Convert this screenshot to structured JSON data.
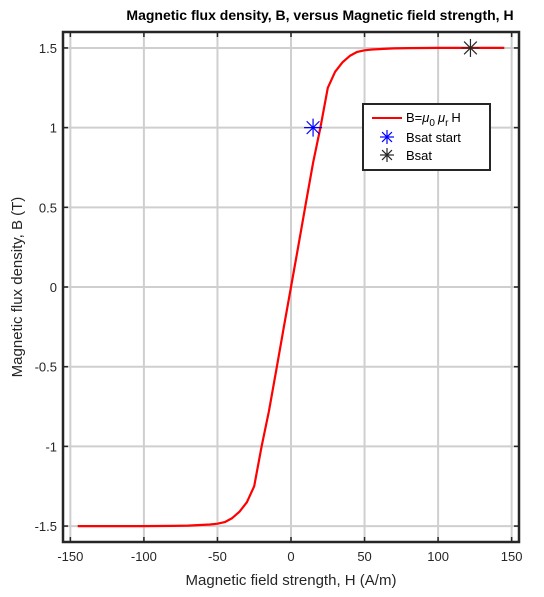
{
  "chart_data": {
    "type": "line",
    "title": "Magnetic flux density, B, versus Magnetic field strength, H",
    "xlabel": "Magnetic field strength, H (A/m)",
    "ylabel": "Magnetic flux density, B (T)",
    "xlim": [
      -155,
      155
    ],
    "ylim": [
      -1.6,
      1.6
    ],
    "xticks": [
      -150,
      -100,
      -50,
      0,
      50,
      100,
      150
    ],
    "xtick_labels": [
      "-150",
      "-100",
      "-50",
      "0",
      "50",
      "100",
      "150"
    ],
    "yticks": [
      -1.5,
      -1,
      -0.5,
      0,
      0.5,
      1,
      1.5
    ],
    "ytick_labels": [
      "-1.5",
      "-1",
      "-0.5",
      "0",
      "0.5",
      "1",
      "1.5"
    ],
    "grid": true,
    "legend_position": "top-right",
    "series": [
      {
        "name": "B=μ0 μr H",
        "name_parts": {
          "base": "B=",
          "mu1": "μ",
          "sub1": "0",
          "mu2": "μ",
          "sub2": "r",
          "tail": "H"
        },
        "style": "line",
        "color": "#ff0000",
        "x": [
          -145,
          -120,
          -100,
          -80,
          -70,
          -60,
          -55,
          -50,
          -45,
          -40,
          -35,
          -30,
          -25,
          -20,
          -15,
          -10,
          -5,
          0,
          5,
          10,
          15,
          20,
          25,
          30,
          35,
          40,
          45,
          50,
          55,
          60,
          70,
          80,
          100,
          120,
          145
        ],
        "y": [
          -1.5,
          -1.5,
          -1.5,
          -1.499,
          -1.497,
          -1.493,
          -1.49,
          -1.485,
          -1.475,
          -1.45,
          -1.41,
          -1.35,
          -1.25,
          -1.0,
          -0.78,
          -0.52,
          -0.26,
          0.0,
          0.26,
          0.52,
          0.78,
          1.0,
          1.25,
          1.35,
          1.41,
          1.45,
          1.475,
          1.485,
          1.49,
          1.493,
          1.497,
          1.499,
          1.5,
          1.5,
          1.5
        ]
      },
      {
        "name": "Bsat start",
        "style": "marker",
        "marker": "asterisk",
        "color": "#0000ff",
        "x": [
          15
        ],
        "y": [
          1.0
        ]
      },
      {
        "name": "Bsat",
        "style": "marker",
        "marker": "asterisk",
        "color": "#262626",
        "x": [
          122
        ],
        "y": [
          1.5
        ]
      }
    ]
  }
}
